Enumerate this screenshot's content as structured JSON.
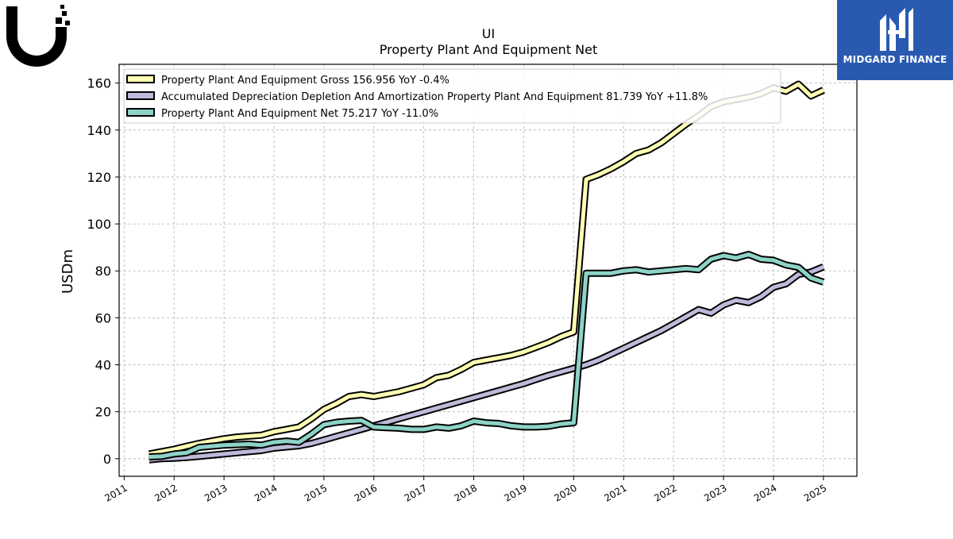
{
  "logo": {
    "icon": "ubiquiti-u-logo",
    "color": "#000000"
  },
  "brand": {
    "name": "MIDGARD FINANCE",
    "icon": "midgard-m-logo",
    "background": "#2a5ab0"
  },
  "chart_data": {
    "type": "line",
    "title": "UI",
    "subtitle": "Property Plant And Equipment Net",
    "xlabel": "",
    "ylabel": "USDm",
    "xlim": [
      2010.9,
      2025.67
    ],
    "ylim": [
      -7.5,
      168
    ],
    "x_ticks": [
      "2011",
      "2012",
      "2013",
      "2014",
      "2015",
      "2016",
      "2017",
      "2018",
      "2019",
      "2020",
      "2021",
      "2022",
      "2023",
      "2024",
      "2025"
    ],
    "y_ticks": [
      0,
      20,
      40,
      60,
      80,
      100,
      120,
      140,
      160
    ],
    "grid": true,
    "legend_position": "top-left",
    "series": [
      {
        "name": "Property Plant And Equipment Gross  156.956 YoY -0.4%",
        "color": "#ffffb3",
        "x": [
          2011.5,
          2011.75,
          2012.0,
          2012.25,
          2012.5,
          2012.75,
          2013.0,
          2013.25,
          2013.5,
          2013.75,
          2014.0,
          2014.25,
          2014.5,
          2014.75,
          2015.0,
          2015.25,
          2015.5,
          2015.75,
          2016.0,
          2016.25,
          2016.5,
          2016.75,
          2017.0,
          2017.25,
          2017.5,
          2017.75,
          2018.0,
          2018.25,
          2018.5,
          2018.75,
          2019.0,
          2019.25,
          2019.5,
          2019.75,
          2020.0,
          2020.25,
          2020.5,
          2020.75,
          2021.0,
          2021.25,
          2021.5,
          2021.75,
          2022.0,
          2022.25,
          2022.5,
          2022.75,
          2023.0,
          2023.25,
          2023.5,
          2023.75,
          2024.0,
          2024.25,
          2024.5,
          2024.75,
          2025.0
        ],
        "values": [
          2.0,
          3.0,
          4.0,
          5.3,
          6.5,
          7.5,
          8.5,
          9.2,
          9.6,
          10.0,
          11.5,
          12.5,
          13.5,
          17.0,
          21.0,
          23.5,
          26.5,
          27.3,
          26.5,
          27.5,
          28.5,
          30.0,
          31.5,
          34.5,
          35.5,
          38.0,
          41.0,
          42.0,
          43.0,
          44.0,
          45.5,
          47.5,
          49.5,
          52.0,
          54.0,
          119.0,
          121.0,
          123.5,
          126.5,
          130.0,
          131.5,
          134.5,
          138.5,
          142.5,
          146.0,
          150.0,
          152.0,
          153.0,
          154.0,
          155.5,
          158.0,
          156.5,
          159.5,
          154.5,
          157.0
        ]
      },
      {
        "name": "Accumulated Depreciation Depletion And Amortization Property Plant And Equipment  81.739 YoY +11.8%",
        "color": "#bebada",
        "x": [
          2011.5,
          2011.75,
          2012.0,
          2012.25,
          2012.5,
          2012.75,
          2013.0,
          2013.25,
          2013.5,
          2013.75,
          2014.0,
          2014.25,
          2014.5,
          2014.75,
          2015.0,
          2015.25,
          2015.5,
          2015.75,
          2016.0,
          2016.25,
          2016.5,
          2016.75,
          2017.0,
          2017.25,
          2017.5,
          2017.75,
          2018.0,
          2018.25,
          2018.5,
          2018.75,
          2019.0,
          2019.25,
          2019.5,
          2019.75,
          2020.0,
          2020.25,
          2020.5,
          2020.75,
          2021.0,
          2021.25,
          2021.5,
          2021.75,
          2022.0,
          2022.25,
          2022.5,
          2022.75,
          2023.0,
          2023.25,
          2023.5,
          2023.75,
          2024.0,
          2024.25,
          2024.5,
          2024.75,
          2025.0
        ],
        "values": [
          -0.5,
          0.0,
          0.2,
          0.5,
          1.0,
          1.5,
          2.0,
          2.5,
          3.0,
          3.5,
          4.5,
          5.0,
          5.5,
          6.5,
          8.0,
          9.5,
          11.0,
          12.5,
          14.0,
          15.5,
          17.0,
          18.5,
          20.0,
          21.5,
          23.0,
          24.5,
          26.0,
          27.5,
          29.0,
          30.5,
          32.0,
          33.8,
          35.5,
          37.0,
          38.5,
          40.0,
          42.0,
          44.5,
          47.0,
          49.5,
          52.0,
          54.5,
          57.5,
          60.5,
          63.5,
          62.0,
          65.5,
          67.5,
          66.5,
          69.0,
          73.0,
          74.5,
          78.5,
          79.5,
          81.7
        ]
      },
      {
        "name": "Property Plant And Equipment Net  75.217 YoY -11.0%",
        "color": "#8dd3c7",
        "x": [
          2011.5,
          2011.75,
          2012.0,
          2012.25,
          2012.5,
          2012.75,
          2013.0,
          2013.25,
          2013.5,
          2013.75,
          2014.0,
          2014.25,
          2014.5,
          2014.75,
          2015.0,
          2015.25,
          2015.5,
          2015.75,
          2016.0,
          2016.25,
          2016.5,
          2016.75,
          2017.0,
          2017.25,
          2017.5,
          2017.75,
          2018.0,
          2018.25,
          2018.5,
          2018.75,
          2019.0,
          2019.25,
          2019.5,
          2019.75,
          2020.0,
          2020.25,
          2020.5,
          2020.75,
          2021.0,
          2021.25,
          2021.5,
          2021.75,
          2022.0,
          2022.25,
          2022.5,
          2022.75,
          2023.0,
          2023.25,
          2023.5,
          2023.75,
          2024.0,
          2024.25,
          2024.5,
          2024.75,
          2025.0
        ],
        "values": [
          0.8,
          1.0,
          2.0,
          2.5,
          4.8,
          5.3,
          5.8,
          6.0,
          6.2,
          5.8,
          7.0,
          7.5,
          7.0,
          10.5,
          14.5,
          15.5,
          16.0,
          16.3,
          13.5,
          13.2,
          13.0,
          12.5,
          12.5,
          13.5,
          13.0,
          14.0,
          16.0,
          15.3,
          15.0,
          14.0,
          13.5,
          13.5,
          13.8,
          14.8,
          15.3,
          79.0,
          79.0,
          79.0,
          80.0,
          80.5,
          79.5,
          80.0,
          80.5,
          81.0,
          80.5,
          85.0,
          86.5,
          85.5,
          87.0,
          85.0,
          84.5,
          82.5,
          81.5,
          77.0,
          75.2
        ]
      }
    ]
  }
}
